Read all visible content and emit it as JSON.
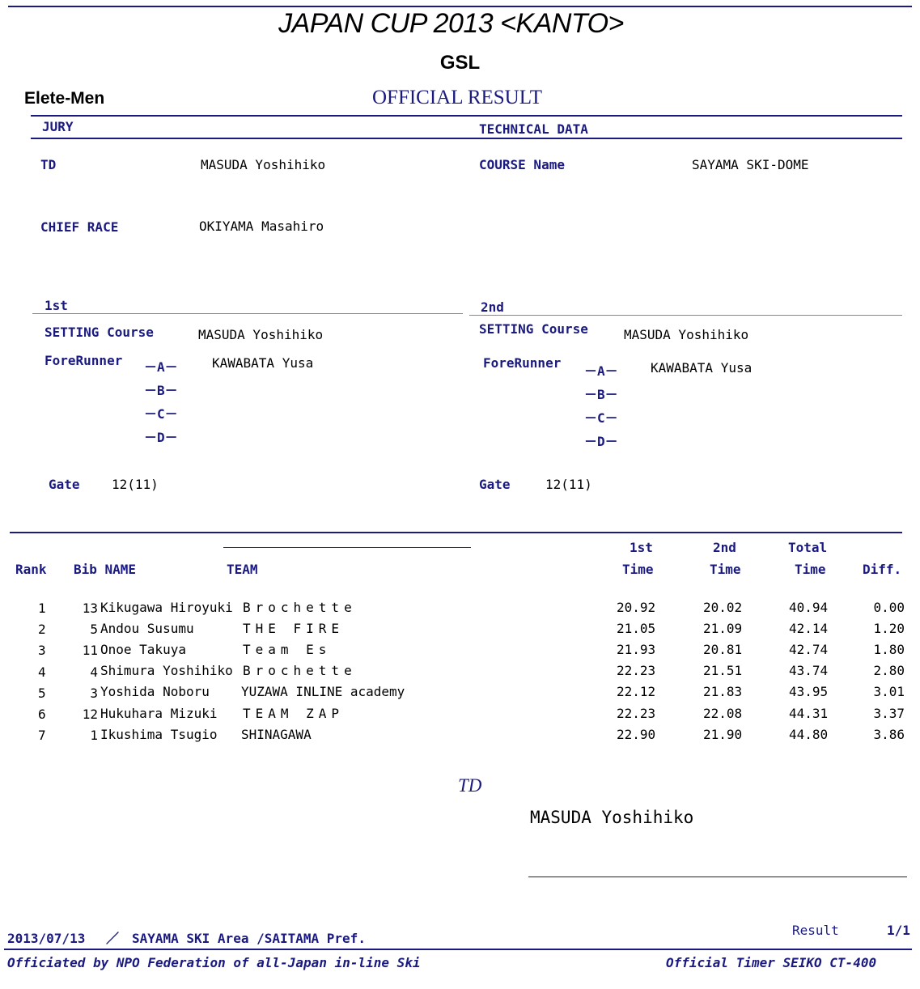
{
  "header": {
    "title": "JAPAN CUP 2013 <KANTO>",
    "event": "GSL",
    "category": "Elete-Men",
    "result_type": "OFFICIAL RESULT"
  },
  "jury": {
    "section": "JURY",
    "td_label": "TD",
    "td_name": "MASUDA Yoshihiko",
    "chief_label": "CHIEF RACE",
    "chief_name": "OKIYAMA Masahiro"
  },
  "technical": {
    "section": "TECHNICAL DATA",
    "course_label": "COURSE Name",
    "course_value": "SAYAMA SKI-DOME"
  },
  "run1": {
    "heading": "1st",
    "setting_label": "SETTING Course",
    "setting_name": "MASUDA Yoshihiko",
    "forerunner_label": "ForeRunner",
    "forerunners": [
      {
        "mark": "－A－",
        "name": "KAWABATA Yusa"
      },
      {
        "mark": "－B－",
        "name": ""
      },
      {
        "mark": "－C－",
        "name": ""
      },
      {
        "mark": "－D－",
        "name": ""
      }
    ],
    "gate_label": "Gate",
    "gate_value": "12(11)"
  },
  "run2": {
    "heading": "2nd",
    "setting_label": "SETTING Course",
    "setting_name": "MASUDA Yoshihiko",
    "forerunner_label": "ForeRunner",
    "forerunners": [
      {
        "mark": "－A－",
        "name": "KAWABATA Yusa"
      },
      {
        "mark": "－B－",
        "name": ""
      },
      {
        "mark": "－C－",
        "name": ""
      },
      {
        "mark": "－D－",
        "name": ""
      }
    ],
    "gate_label": "Gate",
    "gate_value": "12(11)"
  },
  "table": {
    "col_rank": "Rank",
    "col_bib_name": "Bib NAME",
    "col_team": "TEAM",
    "col_1st_top": "1st",
    "col_1st": "Time",
    "col_2nd_top": "2nd",
    "col_2nd": "Time",
    "col_total_top": "Total",
    "col_total": "Time",
    "col_diff": "Diff.",
    "rows": [
      {
        "rank": "1",
        "bib": "13",
        "name": "Kikugawa Hiroyuki",
        "team": "Brochette",
        "t1": "20.92",
        "t2": "20.02",
        "total": "40.94",
        "diff": "0.00"
      },
      {
        "rank": "2",
        "bib": "5",
        "name": "Andou Susumu",
        "team": "THE FIRE",
        "t1": "21.05",
        "t2": "21.09",
        "total": "42.14",
        "diff": "1.20"
      },
      {
        "rank": "3",
        "bib": "11",
        "name": "Onoe Takuya",
        "team": "Team Es",
        "t1": "21.93",
        "t2": "20.81",
        "total": "42.74",
        "diff": "1.80"
      },
      {
        "rank": "4",
        "bib": "4",
        "name": "Shimura Yoshihiko",
        "team": "Brochette",
        "t1": "22.23",
        "t2": "21.51",
        "total": "43.74",
        "diff": "2.80"
      },
      {
        "rank": "5",
        "bib": "3",
        "name": "Yoshida Noboru",
        "team": "YUZAWA INLINE academy",
        "t1": "22.12",
        "t2": "21.83",
        "total": "43.95",
        "diff": "3.01"
      },
      {
        "rank": "6",
        "bib": "12",
        "name": "Hukuhara Mizuki",
        "team": "TEAM ZAP",
        "t1": "22.23",
        "t2": "22.08",
        "total": "44.31",
        "diff": "3.37"
      },
      {
        "rank": "7",
        "bib": "1",
        "name": "Ikushima Tsugio",
        "team": "SHINAGAWA",
        "t1": "22.90",
        "t2": "21.90",
        "total": "44.80",
        "diff": "3.86"
      }
    ]
  },
  "signature": {
    "label": "TD",
    "name": "MASUDA Yoshihiko"
  },
  "footer": {
    "date_place": "2013/07/13　 ／　SAYAMA SKI Area /SAITAMA Pref.",
    "result_label": "Result",
    "page": "1/1",
    "official_left": "Officiated by NPO Federation of all-Japan in-line Ski",
    "official_right": "Official Timer SEIKO CT-400"
  }
}
